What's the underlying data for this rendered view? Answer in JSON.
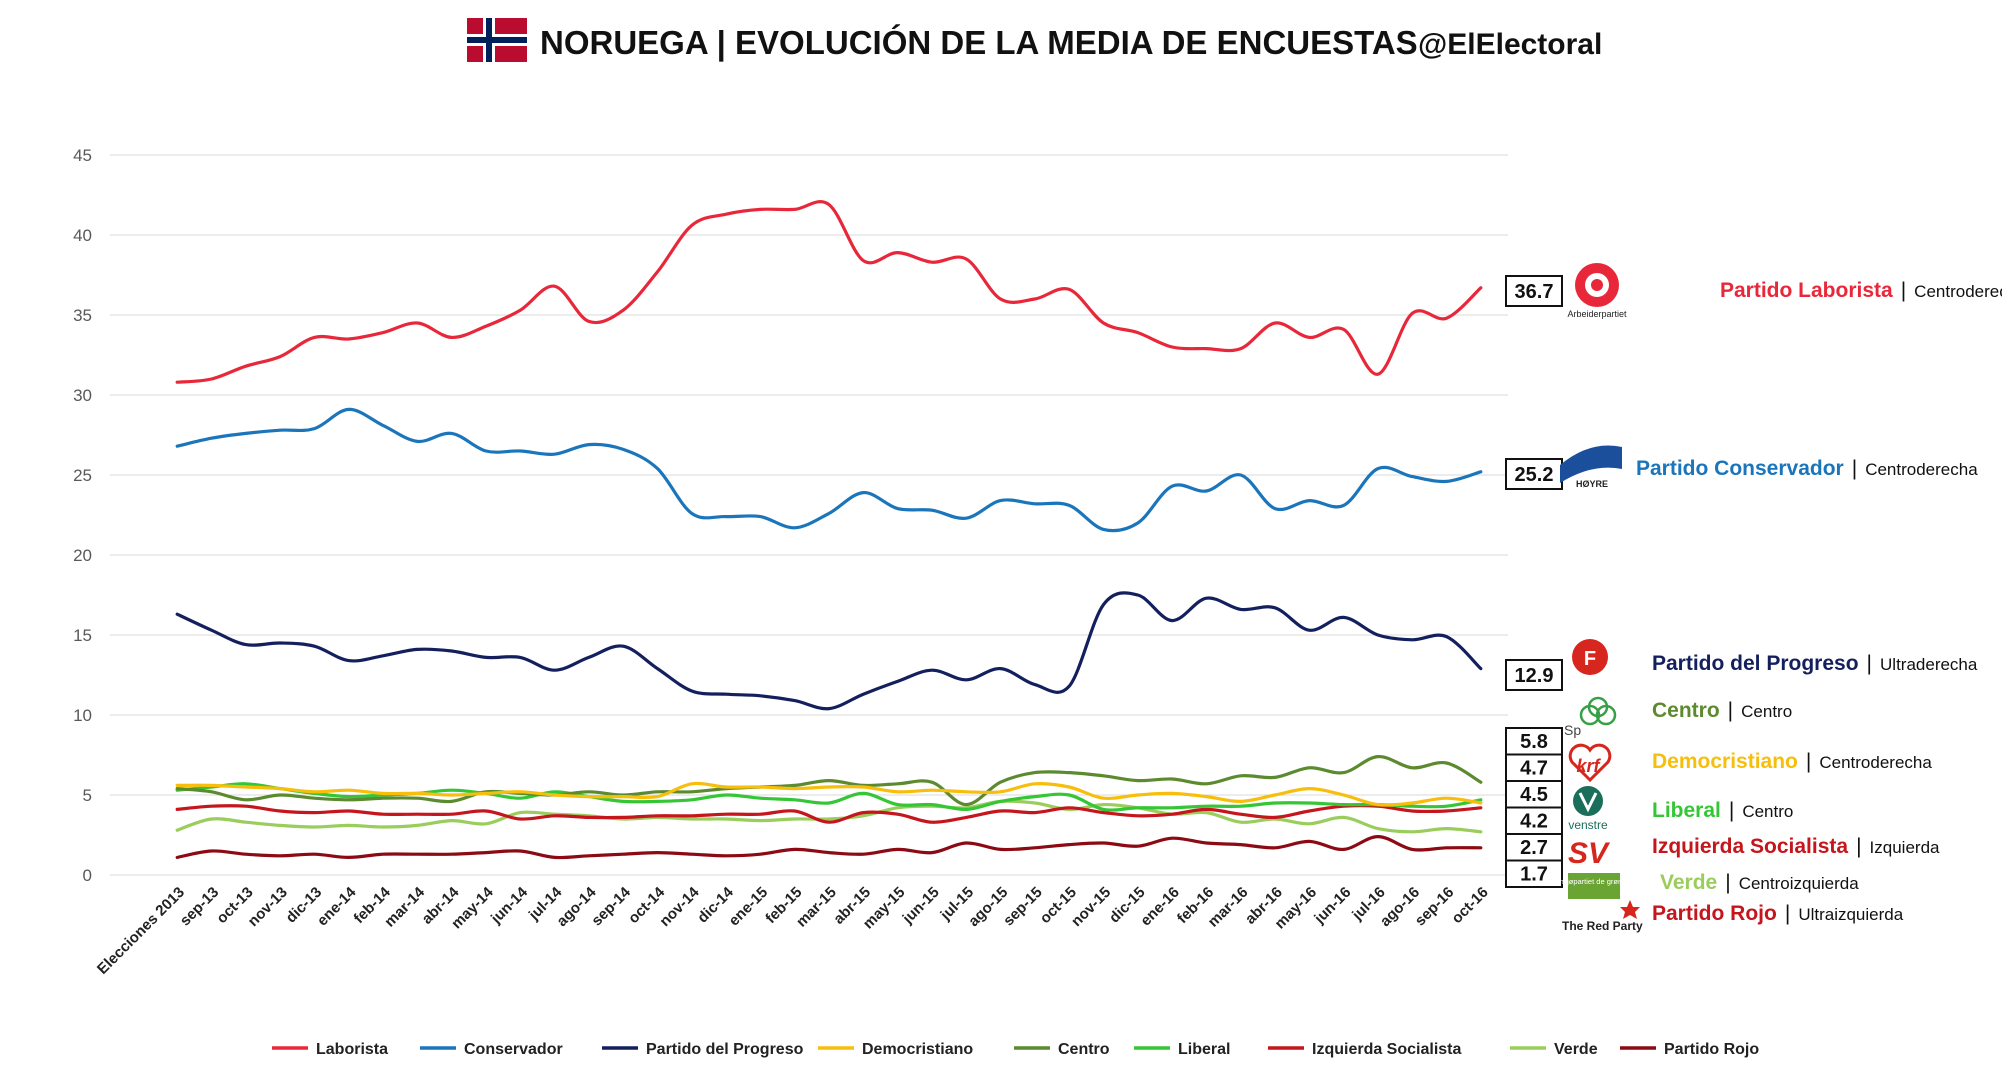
{
  "header": {
    "title": "NORUEGA | EVOLUCIÓN DE LA MEDIA DE ENCUESTAS",
    "handle": "@ElElectoral"
  },
  "chart_data": {
    "type": "line",
    "title": "NORUEGA | EVOLUCIÓN DE LA MEDIA DE ENCUESTAS",
    "xlabel": "",
    "ylabel": "",
    "ylim": [
      0,
      45
    ],
    "yticks": [
      0,
      5,
      10,
      15,
      20,
      25,
      30,
      35,
      40,
      45
    ],
    "grid": true,
    "legend_position": "bottom",
    "categories": [
      "Elecciones 2013",
      "sep-13",
      "oct-13",
      "nov-13",
      "dic-13",
      "ene-14",
      "feb-14",
      "mar-14",
      "abr-14",
      "may-14",
      "jun-14",
      "jul-14",
      "ago-14",
      "sep-14",
      "oct-14",
      "nov-14",
      "dic-14",
      "ene-15",
      "feb-15",
      "mar-15",
      "abr-15",
      "may-15",
      "jun-15",
      "jul-15",
      "ago-15",
      "sep-15",
      "oct-15",
      "nov-15",
      "dic-15",
      "ene-16",
      "feb-16",
      "mar-16",
      "abr-16",
      "may-16",
      "jun-16",
      "jul-16",
      "ago-16",
      "sep-16",
      "oct-16"
    ],
    "series": [
      {
        "name": "Laborista",
        "color": "#e8283a",
        "end_label": "36.7",
        "values": [
          30.8,
          31.0,
          31.8,
          32.4,
          33.6,
          33.5,
          33.9,
          34.5,
          33.6,
          34.3,
          35.3,
          36.8,
          34.6,
          35.3,
          37.7,
          40.6,
          41.3,
          41.6,
          41.6,
          41.9,
          38.4,
          38.9,
          38.3,
          38.5,
          36.0,
          36.0,
          36.6,
          34.5,
          33.9,
          33.0,
          32.9,
          32.9,
          34.5,
          33.6,
          34.1,
          31.3,
          35.1,
          34.8,
          36.7
        ]
      },
      {
        "name": "Conservador",
        "color": "#1b75bb",
        "end_label": "25.2",
        "values": [
          26.8,
          27.3,
          27.6,
          27.8,
          27.9,
          29.1,
          28.1,
          27.1,
          27.6,
          26.5,
          26.5,
          26.3,
          26.9,
          26.6,
          25.4,
          22.6,
          22.4,
          22.4,
          21.7,
          22.6,
          23.9,
          22.9,
          22.8,
          22.3,
          23.4,
          23.2,
          23.1,
          21.6,
          22.0,
          24.3,
          24.0,
          25.0,
          22.9,
          23.4,
          23.1,
          25.4,
          24.9,
          24.6,
          25.2
        ]
      },
      {
        "name": "Partido del Progreso",
        "color": "#14205e",
        "end_label": "12.9",
        "values": [
          16.3,
          15.3,
          14.4,
          14.5,
          14.3,
          13.4,
          13.7,
          14.1,
          14.0,
          13.6,
          13.6,
          12.8,
          13.6,
          14.3,
          12.9,
          11.5,
          11.3,
          11.2,
          10.9,
          10.4,
          11.3,
          12.1,
          12.8,
          12.2,
          12.9,
          11.9,
          11.8,
          16.9,
          17.5,
          15.9,
          17.3,
          16.6,
          16.7,
          15.3,
          16.1,
          15.0,
          14.7,
          14.9,
          12.9
        ]
      },
      {
        "name": "Democristiano",
        "color": "#f7be0b",
        "end_label": "4.5",
        "values": [
          5.6,
          5.6,
          5.5,
          5.4,
          5.2,
          5.3,
          5.1,
          5.1,
          5.0,
          5.1,
          5.2,
          5.0,
          4.9,
          4.9,
          4.9,
          5.7,
          5.5,
          5.5,
          5.4,
          5.5,
          5.5,
          5.2,
          5.3,
          5.2,
          5.2,
          5.7,
          5.5,
          4.8,
          5.0,
          5.1,
          4.9,
          4.6,
          5.0,
          5.4,
          5.0,
          4.4,
          4.5,
          4.8,
          4.5
        ]
      },
      {
        "name": "Centro",
        "color": "#5c8a2f",
        "end_label": "5.8",
        "values": [
          5.4,
          5.2,
          4.7,
          5.0,
          4.8,
          4.7,
          4.8,
          4.8,
          4.6,
          5.2,
          5.1,
          5.0,
          5.2,
          5.0,
          5.2,
          5.2,
          5.4,
          5.5,
          5.6,
          5.9,
          5.6,
          5.7,
          5.8,
          4.4,
          5.8,
          6.4,
          6.4,
          6.2,
          5.9,
          6.0,
          5.7,
          6.2,
          6.1,
          6.7,
          6.4,
          7.4,
          6.7,
          7.0,
          5.8
        ]
      },
      {
        "name": "Liberal",
        "color": "#35c635",
        "end_label": "4.7",
        "values": [
          5.3,
          5.5,
          5.7,
          5.4,
          5.1,
          4.9,
          5.0,
          5.1,
          5.3,
          5.1,
          4.8,
          5.2,
          4.9,
          4.6,
          4.6,
          4.7,
          5.0,
          4.8,
          4.7,
          4.5,
          5.1,
          4.4,
          4.4,
          4.1,
          4.6,
          4.9,
          5.0,
          4.1,
          4.2,
          4.2,
          4.3,
          4.3,
          4.5,
          4.5,
          4.4,
          4.4,
          4.3,
          4.3,
          4.7
        ]
      },
      {
        "name": "Izquierda Socialista",
        "color": "#c4161c",
        "end_label": "4.2",
        "values": [
          4.1,
          4.3,
          4.3,
          4.0,
          3.9,
          4.0,
          3.8,
          3.8,
          3.8,
          4.0,
          3.5,
          3.7,
          3.6,
          3.6,
          3.7,
          3.7,
          3.8,
          3.8,
          4.0,
          3.3,
          3.9,
          3.8,
          3.3,
          3.6,
          4.0,
          3.9,
          4.2,
          3.9,
          3.7,
          3.8,
          4.1,
          3.8,
          3.6,
          4.0,
          4.3,
          4.3,
          4.0,
          4.0,
          4.2
        ]
      },
      {
        "name": "Verde",
        "color": "#9acd5c",
        "end_label": "2.7",
        "values": [
          2.8,
          3.5,
          3.3,
          3.1,
          3.0,
          3.1,
          3.0,
          3.1,
          3.4,
          3.2,
          3.9,
          3.8,
          3.7,
          3.5,
          3.6,
          3.5,
          3.5,
          3.4,
          3.5,
          3.5,
          3.7,
          4.2,
          4.3,
          4.2,
          4.6,
          4.5,
          4.1,
          4.4,
          4.2,
          3.8,
          3.9,
          3.3,
          3.5,
          3.2,
          3.6,
          2.9,
          2.7,
          2.9,
          2.7
        ]
      },
      {
        "name": "Partido Rojo",
        "color": "#8b0a14",
        "end_label": "1.7",
        "values": [
          1.1,
          1.5,
          1.3,
          1.2,
          1.3,
          1.1,
          1.3,
          1.3,
          1.3,
          1.4,
          1.5,
          1.1,
          1.2,
          1.3,
          1.4,
          1.3,
          1.2,
          1.3,
          1.6,
          1.4,
          1.3,
          1.6,
          1.4,
          2.0,
          1.6,
          1.7,
          1.9,
          2.0,
          1.8,
          2.3,
          2.0,
          1.9,
          1.7,
          2.1,
          1.6,
          2.4,
          1.6,
          1.7,
          1.7
        ]
      }
    ],
    "end_labels_column": [
      "36.7",
      "25.2",
      "12.9",
      "5.8",
      "4.7",
      "4.5",
      "4.2",
      "2.7",
      "1.7"
    ]
  },
  "parties": [
    {
      "name": "Partido Laborista",
      "sep": "|",
      "ideology": "Centroderecha",
      "color": "#e8283a",
      "logo": "rose-logo-icon",
      "logo_text": "Arbeiderpartiet"
    },
    {
      "name": "Partido Conservador",
      "sep": "|",
      "ideology": "Centroderecha",
      "color": "#1b75bb",
      "logo": "hoyre-logo-icon",
      "logo_text": "HØYRE"
    },
    {
      "name": "Partido del Progreso",
      "sep": "|",
      "ideology": "Ultraderecha",
      "color": "#14205e",
      "logo": "apple-logo-icon",
      "logo_text": "F"
    },
    {
      "name": "Centro",
      "sep": "|",
      "ideology": "Centro",
      "color": "#5c8a2f",
      "logo": "clover-logo-icon",
      "logo_text": "Sp"
    },
    {
      "name": "Democristiano",
      "sep": "|",
      "ideology": "Centroderecha",
      "color": "#f7be0b",
      "logo": "krf-logo-icon",
      "logo_text": "krf"
    },
    {
      "name": "Liberal",
      "sep": "|",
      "ideology": "Centro",
      "color": "#35c635",
      "logo": "venstre-logo-icon",
      "logo_text": "venstre"
    },
    {
      "name": "Izquierda Socialista",
      "sep": "|",
      "ideology": "Izquierda",
      "color": "#c4161c",
      "logo": "sv-logo-icon",
      "logo_text": "SV"
    },
    {
      "name": "Verde",
      "sep": "|",
      "ideology": "Centroizquierda",
      "color": "#9acd5c",
      "logo": "mdg-logo-icon",
      "logo_text": "miljøpartiet de grønne"
    },
    {
      "name": "Partido Rojo",
      "sep": "|",
      "ideology": "Ultraizquierda",
      "color": "#c4161c",
      "logo": "red-party-logo-icon",
      "logo_text": "The Red Party"
    }
  ],
  "colors": {
    "flag_red": "#ba0c2f",
    "flag_blue": "#00205b",
    "grid": "#d9d9d9"
  }
}
